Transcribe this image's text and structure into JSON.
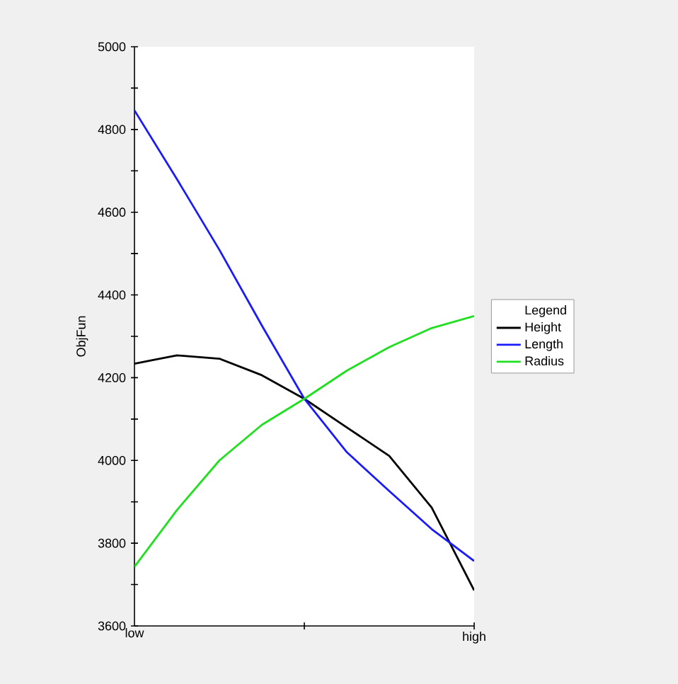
{
  "chart_data": {
    "type": "line",
    "ylabel": "ObjFun",
    "legend_title": "Legend",
    "legend": "right",
    "categories": [
      "low",
      null,
      null,
      null,
      null,
      null,
      null,
      null,
      "high"
    ],
    "ylim": [
      3600,
      5000
    ],
    "yticks": [
      3600,
      {
        "value": 3700,
        "label": null
      },
      3800,
      {
        "value": 3900,
        "label": null
      },
      4000,
      {
        "value": 4100,
        "label": null
      },
      4200,
      {
        "value": 4300,
        "label": null
      },
      4400,
      {
        "value": 4500,
        "label": null
      },
      4600,
      {
        "value": 4700,
        "label": null
      },
      4800,
      {
        "value": 4900,
        "label": null
      },
      5000
    ],
    "series": [
      {
        "name": "Height",
        "color": "#000000",
        "values": [
          4234,
          4254,
          4246,
          4206,
          4149,
          4080,
          4011,
          3886,
          3686
        ]
      },
      {
        "name": "Length",
        "color": "#1a1aff",
        "values": [
          4846,
          4680,
          4509,
          4326,
          4149,
          4020,
          3926,
          3834,
          3757
        ]
      },
      {
        "name": "Radius",
        "color": "#1ee01e",
        "values": [
          3743,
          3880,
          4000,
          4086,
          4149,
          4217,
          4274,
          4320,
          4349
        ]
      }
    ]
  }
}
